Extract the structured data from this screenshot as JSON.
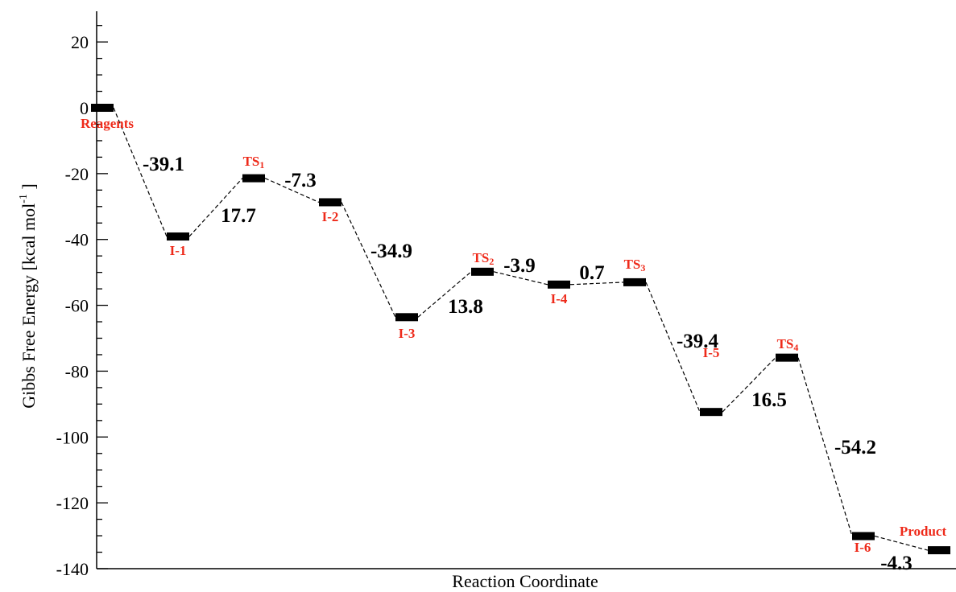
{
  "chart_data": {
    "type": "line",
    "title": "",
    "xlabel": "Reaction Coordinate",
    "ylabel": "Gibbs Free Energy [kcal mol",
    "ylabel_sup": "-1",
    "ylabel_close": " ]",
    "ylim": [
      -140,
      30
    ],
    "yticks": [
      20,
      0,
      -20,
      -40,
      -60,
      -80,
      -100,
      -120,
      -140
    ],
    "ytick_labels": [
      "20",
      "0",
      "-20",
      "-40",
      "-60",
      "-80",
      "-100",
      "-120",
      "-140"
    ],
    "grid": false,
    "states": [
      {
        "name": "Reagents",
        "energy": 0
      },
      {
        "name": "I-1",
        "energy": -39.1
      },
      {
        "name": "TS",
        "sub": "1",
        "energy": -21.4
      },
      {
        "name": "I-2",
        "energy": -28.7
      },
      {
        "name": "I-3",
        "energy": -63.6
      },
      {
        "name": "TS",
        "sub": "2",
        "energy": -49.8
      },
      {
        "name": "I-4",
        "energy": -53.7
      },
      {
        "name": "TS",
        "sub": "3",
        "energy": -53.0
      },
      {
        "name": "I-5",
        "energy": -92.4
      },
      {
        "name": "TS",
        "sub": "4",
        "energy": -75.9
      },
      {
        "name": "I-6",
        "energy": -130.1
      },
      {
        "name": "Product",
        "energy": -134.4
      }
    ],
    "deltas": [
      "-39.1",
      "17.7",
      "-7.3",
      "-34.9",
      "13.8",
      "-3.9",
      "0.7",
      "-39.4",
      "16.5",
      "-54.2",
      "-4.3"
    ],
    "colors": {
      "level": "#000000",
      "connector": "#000000",
      "state_label": "#ee2a1a",
      "delta_label": "#000000"
    }
  }
}
